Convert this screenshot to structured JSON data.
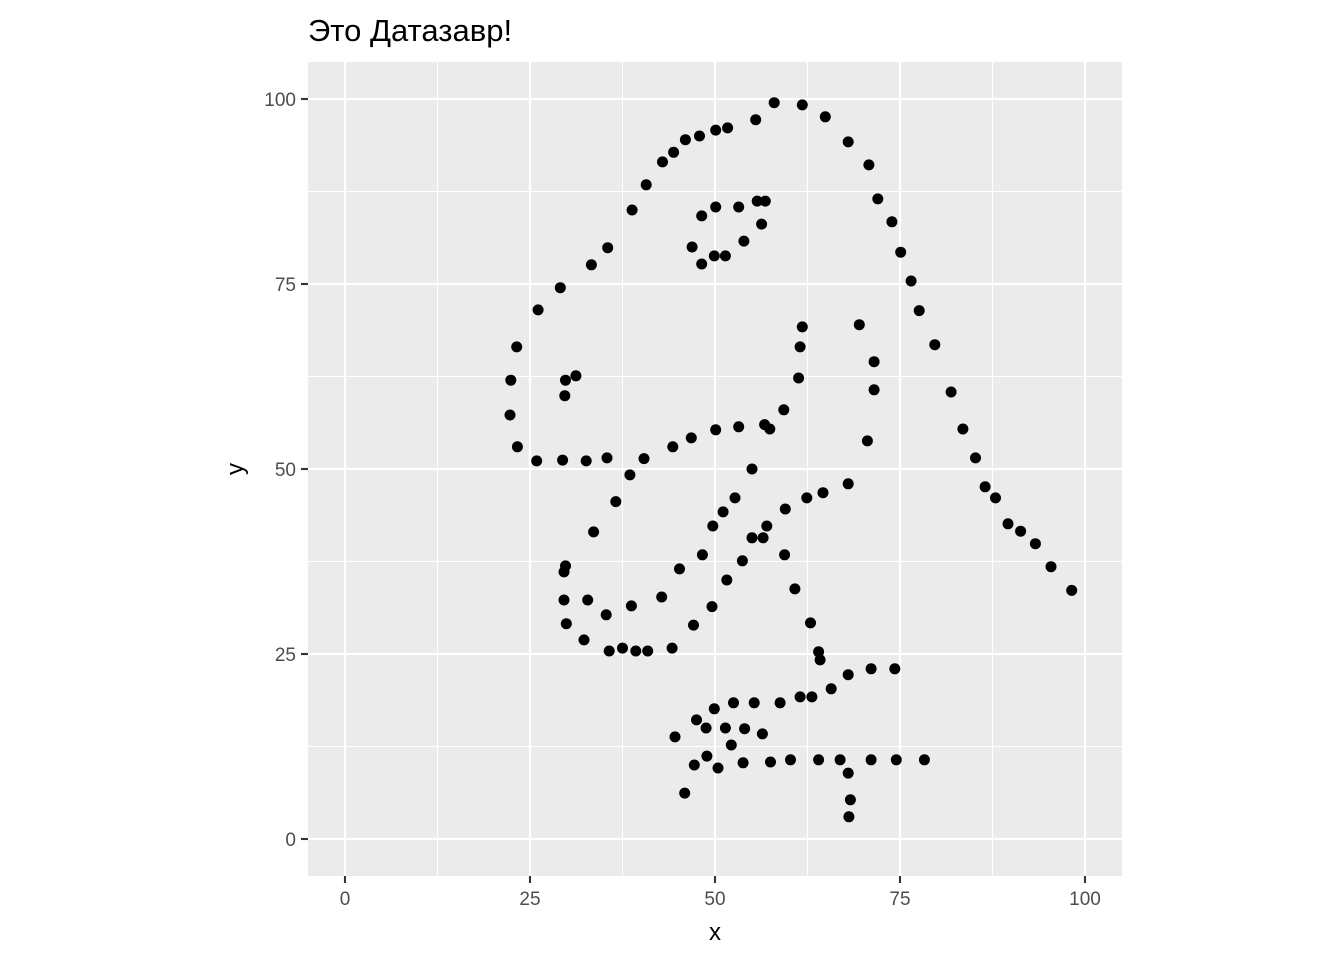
{
  "chart_data": {
    "type": "scatter",
    "title": "Это Датазавр!",
    "xlabel": "x",
    "ylabel": "y",
    "xlim": [
      -5,
      105
    ],
    "ylim": [
      -5,
      105
    ],
    "x_ticks": [
      0,
      25,
      50,
      75,
      100
    ],
    "y_ticks": [
      0,
      25,
      50,
      75,
      100
    ],
    "grid": true,
    "point_color": "#000000",
    "points": [
      [
        58.0,
        99.5
      ],
      [
        61.8,
        99.2
      ],
      [
        64.9,
        97.6
      ],
      [
        55.5,
        97.2
      ],
      [
        51.7,
        96.1
      ],
      [
        50.1,
        95.8
      ],
      [
        47.9,
        95.0
      ],
      [
        46.0,
        94.5
      ],
      [
        44.4,
        92.8
      ],
      [
        42.9,
        91.5
      ],
      [
        68.0,
        94.2
      ],
      [
        70.8,
        91.1
      ],
      [
        72.0,
        86.5
      ],
      [
        73.9,
        83.4
      ],
      [
        75.1,
        79.3
      ],
      [
        76.5,
        75.4
      ],
      [
        77.6,
        71.4
      ],
      [
        79.7,
        66.8
      ],
      [
        81.9,
        60.4
      ],
      [
        83.5,
        55.4
      ],
      [
        85.2,
        51.5
      ],
      [
        86.5,
        47.6
      ],
      [
        87.9,
        46.1
      ],
      [
        89.6,
        42.6
      ],
      [
        91.3,
        41.6
      ],
      [
        93.3,
        39.9
      ],
      [
        95.4,
        36.8
      ],
      [
        98.2,
        33.6
      ],
      [
        40.7,
        88.4
      ],
      [
        38.8,
        85.0
      ],
      [
        35.5,
        79.9
      ],
      [
        33.3,
        77.6
      ],
      [
        29.1,
        74.5
      ],
      [
        26.1,
        71.5
      ],
      [
        23.2,
        66.5
      ],
      [
        22.4,
        62.0
      ],
      [
        22.3,
        57.3
      ],
      [
        23.3,
        53.0
      ],
      [
        25.9,
        51.1
      ],
      [
        29.4,
        51.2
      ],
      [
        32.6,
        51.1
      ],
      [
        35.4,
        51.5
      ],
      [
        40.4,
        51.4
      ],
      [
        44.3,
        53.0
      ],
      [
        46.8,
        54.2
      ],
      [
        50.1,
        55.3
      ],
      [
        53.2,
        55.7
      ],
      [
        56.7,
        56.0
      ],
      [
        57.4,
        55.4
      ],
      [
        59.3,
        58.0
      ],
      [
        61.3,
        62.3
      ],
      [
        61.5,
        66.5
      ],
      [
        61.8,
        69.2
      ],
      [
        69.5,
        69.5
      ],
      [
        71.5,
        64.5
      ],
      [
        71.5,
        60.7
      ],
      [
        70.6,
        53.8
      ],
      [
        68.0,
        48.0
      ],
      [
        64.6,
        46.8
      ],
      [
        62.4,
        46.1
      ],
      [
        59.5,
        44.6
      ],
      [
        57.0,
        42.3
      ],
      [
        56.5,
        40.7
      ],
      [
        55.0,
        40.7
      ],
      [
        53.7,
        37.6
      ],
      [
        51.6,
        35.0
      ],
      [
        49.6,
        31.4
      ],
      [
        47.1,
        28.9
      ],
      [
        44.2,
        25.8
      ],
      [
        40.9,
        25.4
      ],
      [
        39.3,
        25.4
      ],
      [
        37.5,
        25.8
      ],
      [
        35.7,
        25.4
      ],
      [
        32.3,
        26.9
      ],
      [
        29.9,
        29.1
      ],
      [
        29.6,
        32.3
      ],
      [
        29.6,
        36.1
      ],
      [
        29.8,
        36.9
      ],
      [
        33.6,
        41.5
      ],
      [
        36.6,
        45.6
      ],
      [
        38.5,
        49.2
      ],
      [
        42.8,
        32.7
      ],
      [
        45.2,
        36.5
      ],
      [
        48.3,
        38.4
      ],
      [
        49.7,
        42.3
      ],
      [
        51.1,
        44.2
      ],
      [
        52.7,
        46.1
      ],
      [
        55.0,
        50.0
      ],
      [
        59.4,
        38.4
      ],
      [
        60.8,
        33.8
      ],
      [
        62.9,
        29.2
      ],
      [
        64.0,
        25.3
      ],
      [
        64.2,
        24.2
      ],
      [
        65.7,
        20.3
      ],
      [
        68.0,
        22.2
      ],
      [
        71.1,
        23.0
      ],
      [
        74.3,
        23.0
      ],
      [
        32.8,
        32.3
      ],
      [
        35.3,
        30.3
      ],
      [
        38.7,
        31.5
      ],
      [
        56.8,
        86.2
      ],
      [
        55.7,
        86.2
      ],
      [
        53.2,
        85.4
      ],
      [
        50.1,
        85.4
      ],
      [
        48.2,
        84.2
      ],
      [
        46.9,
        80.0
      ],
      [
        48.2,
        77.7
      ],
      [
        49.9,
        78.8
      ],
      [
        51.4,
        78.8
      ],
      [
        53.9,
        80.8
      ],
      [
        56.3,
        83.1
      ],
      [
        29.8,
        62.0
      ],
      [
        31.2,
        62.6
      ],
      [
        29.7,
        59.9
      ],
      [
        44.6,
        13.8
      ],
      [
        45.9,
        6.2
      ],
      [
        47.2,
        10.0
      ],
      [
        48.9,
        11.2
      ],
      [
        50.4,
        9.6
      ],
      [
        47.5,
        16.1
      ],
      [
        48.8,
        15.0
      ],
      [
        49.9,
        17.6
      ],
      [
        51.4,
        15.0
      ],
      [
        52.2,
        12.7
      ],
      [
        52.5,
        18.4
      ],
      [
        54.0,
        14.9
      ],
      [
        53.8,
        10.3
      ],
      [
        55.3,
        18.4
      ],
      [
        56.4,
        14.2
      ],
      [
        57.5,
        10.4
      ],
      [
        58.8,
        18.4
      ],
      [
        60.2,
        10.7
      ],
      [
        61.5,
        19.2
      ],
      [
        63.1,
        19.2
      ],
      [
        64.0,
        10.7
      ],
      [
        66.9,
        10.7
      ],
      [
        68.0,
        8.9
      ],
      [
        68.3,
        5.3
      ],
      [
        68.1,
        3.0
      ],
      [
        71.1,
        10.7
      ],
      [
        74.5,
        10.7
      ],
      [
        78.3,
        10.7
      ]
    ]
  }
}
